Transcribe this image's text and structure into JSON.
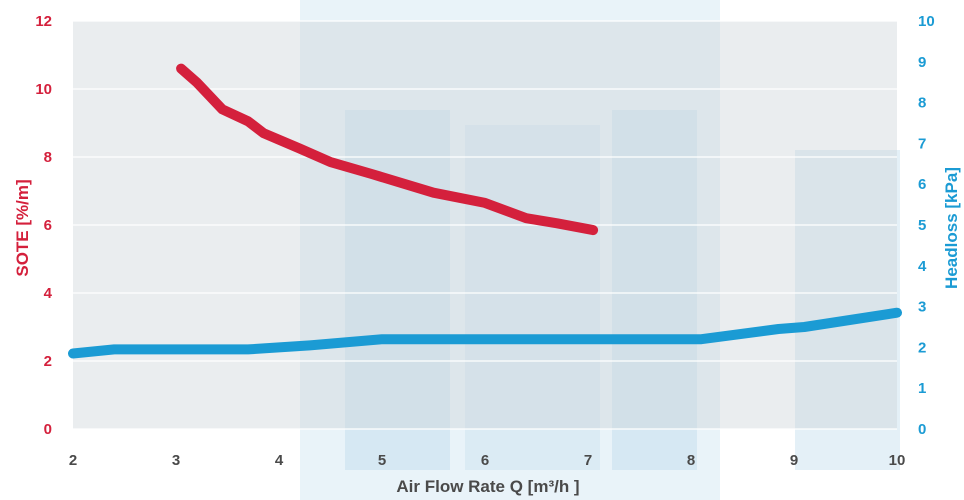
{
  "chart_data": {
    "type": "line",
    "xlabel": "Air Flow Rate Q [m³/h ]",
    "ylabel": "SOTE [%/m]",
    "y2label": "Headloss [kPa]",
    "xlim": [
      2,
      10
    ],
    "ylim": [
      0,
      12
    ],
    "y2lim": [
      0,
      10
    ],
    "x_ticks": [
      "2",
      "3",
      "4",
      "5",
      "6",
      "7",
      "8",
      "9",
      "10"
    ],
    "y_ticks": [
      "0",
      "2",
      "4",
      "6",
      "8",
      "10",
      "12"
    ],
    "y2_ticks": [
      "0",
      "1",
      "2",
      "3",
      "4",
      "5",
      "6",
      "7",
      "8",
      "9",
      "10"
    ],
    "grid": "horizontal",
    "series": [
      {
        "axis": "left",
        "color": "#d4203c",
        "x": [
          3.05,
          3.2,
          3.45,
          3.7,
          3.85,
          4.2,
          4.5,
          4.9,
          5.5,
          6.0,
          6.4,
          6.7,
          7.05
        ],
        "y": [
          10.6,
          10.2,
          9.4,
          9.05,
          8.7,
          8.25,
          7.85,
          7.5,
          6.95,
          6.65,
          6.2,
          6.05,
          5.85
        ]
      },
      {
        "axis": "right",
        "color": "#1b9bd4",
        "x": [
          2.0,
          2.4,
          3.0,
          3.7,
          4.3,
          5.0,
          6.0,
          7.0,
          8.1,
          8.85,
          9.1,
          10.0
        ],
        "y": [
          1.85,
          1.95,
          1.95,
          1.95,
          2.05,
          2.2,
          2.2,
          2.2,
          2.2,
          2.45,
          2.5,
          2.85
        ]
      }
    ]
  }
}
